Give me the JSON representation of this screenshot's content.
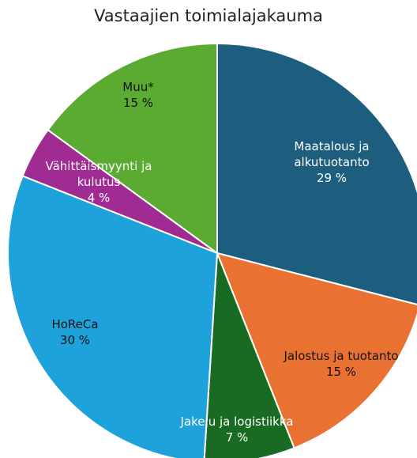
{
  "chart_data": {
    "type": "pie",
    "title": "Vastaajien toimialajakauma",
    "categories": [
      "Maatalous ja alkutuotanto",
      "Jalostus ja tuotanto",
      "Jakelu ja logistiikka",
      "HoReCa",
      "Vähittäismyynti ja kulutus",
      "Muu*"
    ],
    "values": [
      29,
      15,
      7,
      30,
      4,
      15
    ],
    "value_labels": [
      "29 %",
      "15 %",
      "7 %",
      "30 %",
      "4 %",
      "15 %"
    ],
    "colors": [
      "#1d5d7e",
      "#e97132",
      "#196b24",
      "#1ea2dc",
      "#a02b93",
      "#5bab33"
    ]
  }
}
